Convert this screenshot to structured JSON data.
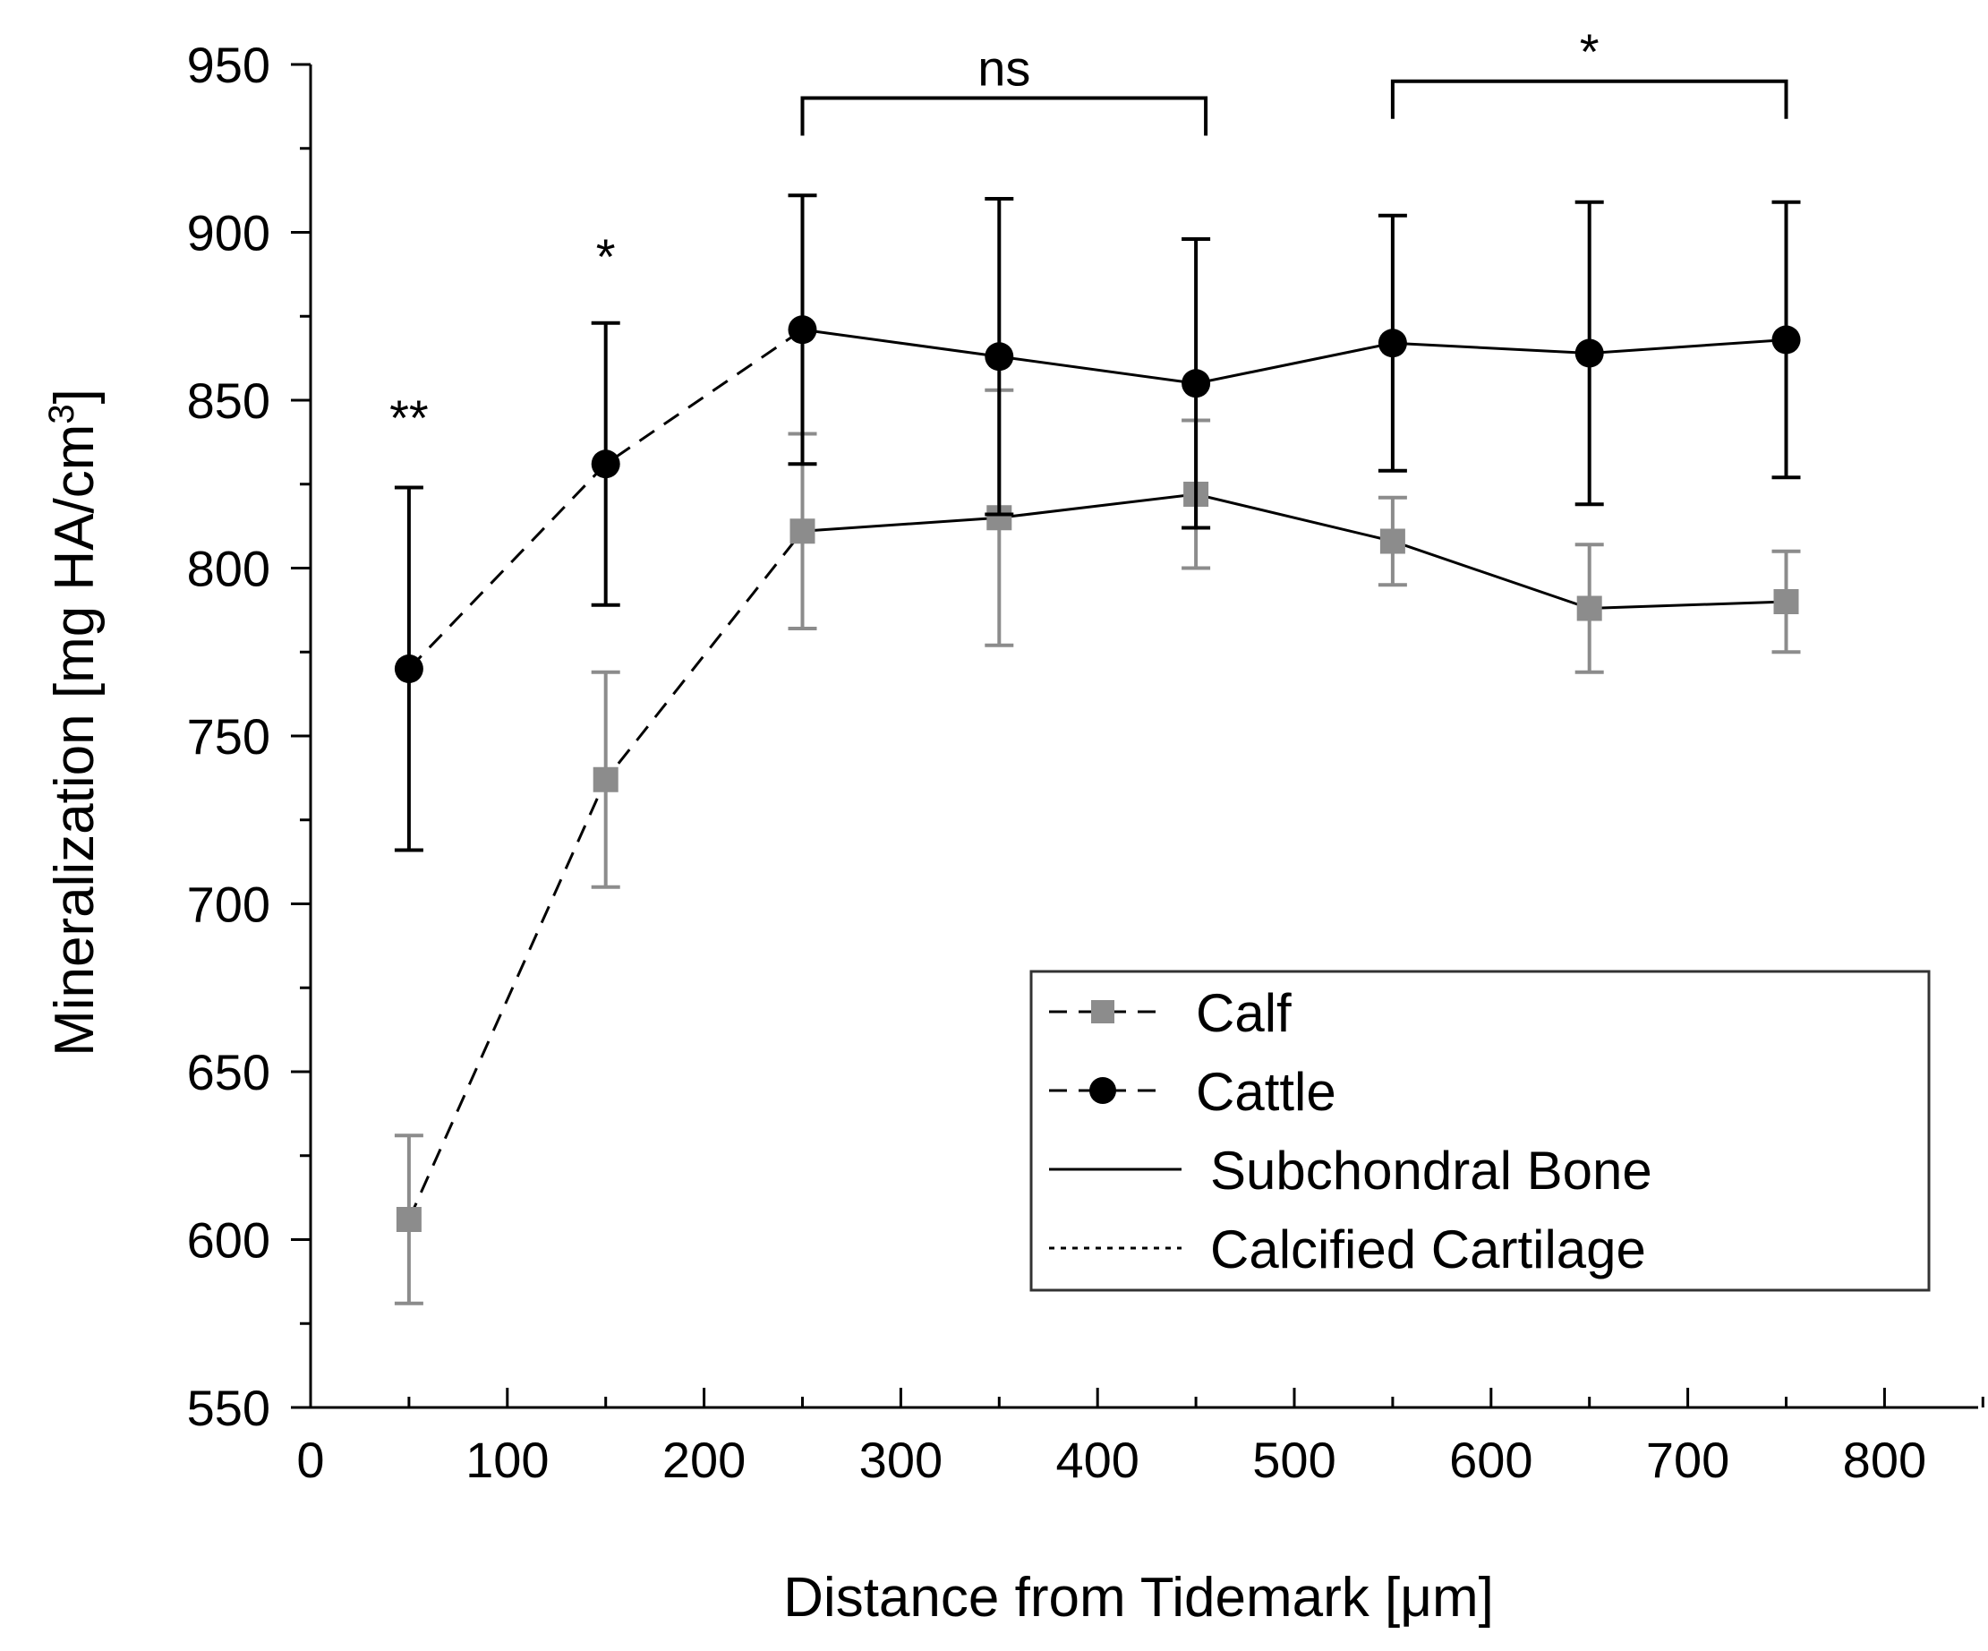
{
  "chart_data": {
    "type": "line",
    "xlabel": "Distance from Tidemark [μm]",
    "ylabel": "Mineralization [mg HA/cm",
    "ylabel_superscript": "3",
    "ylabel_close": "]",
    "xlim": [
      0,
      850
    ],
    "ylim": [
      550,
      950
    ],
    "xticks": [
      0,
      100,
      200,
      300,
      400,
      500,
      600,
      700,
      800
    ],
    "yticks": [
      550,
      600,
      650,
      700,
      750,
      800,
      850,
      900,
      950
    ],
    "x": [
      50,
      150,
      250,
      350,
      450,
      550,
      650,
      750
    ],
    "series": [
      {
        "name": "Calf",
        "marker": "square",
        "color": "#8c8c8c",
        "values": [
          606,
          737,
          811,
          815,
          822,
          808,
          788,
          790
        ],
        "errors": [
          25,
          32,
          29,
          38,
          22,
          13,
          19,
          15
        ]
      },
      {
        "name": "Cattle",
        "marker": "circle",
        "color": "#000000",
        "values": [
          770,
          831,
          871,
          863,
          855,
          867,
          864,
          868
        ],
        "errors": [
          54,
          42,
          40,
          47,
          43,
          38,
          45,
          41
        ]
      }
    ],
    "line_styles": [
      {
        "name": "Subchondral Bone",
        "style": "solid"
      },
      {
        "name": "Calcified Cartilage",
        "style": "dotted"
      }
    ],
    "annotations": [
      {
        "text": "**",
        "x": 50,
        "y": 845
      },
      {
        "text": "*",
        "x": 150,
        "y": 893
      }
    ],
    "brackets": [
      {
        "text": "ns",
        "x_start": 250,
        "x_end": 455,
        "y": 940
      },
      {
        "text": "*",
        "x_start": 550,
        "x_end": 750,
        "y": 945
      }
    ],
    "legend_position": "lower-right"
  }
}
